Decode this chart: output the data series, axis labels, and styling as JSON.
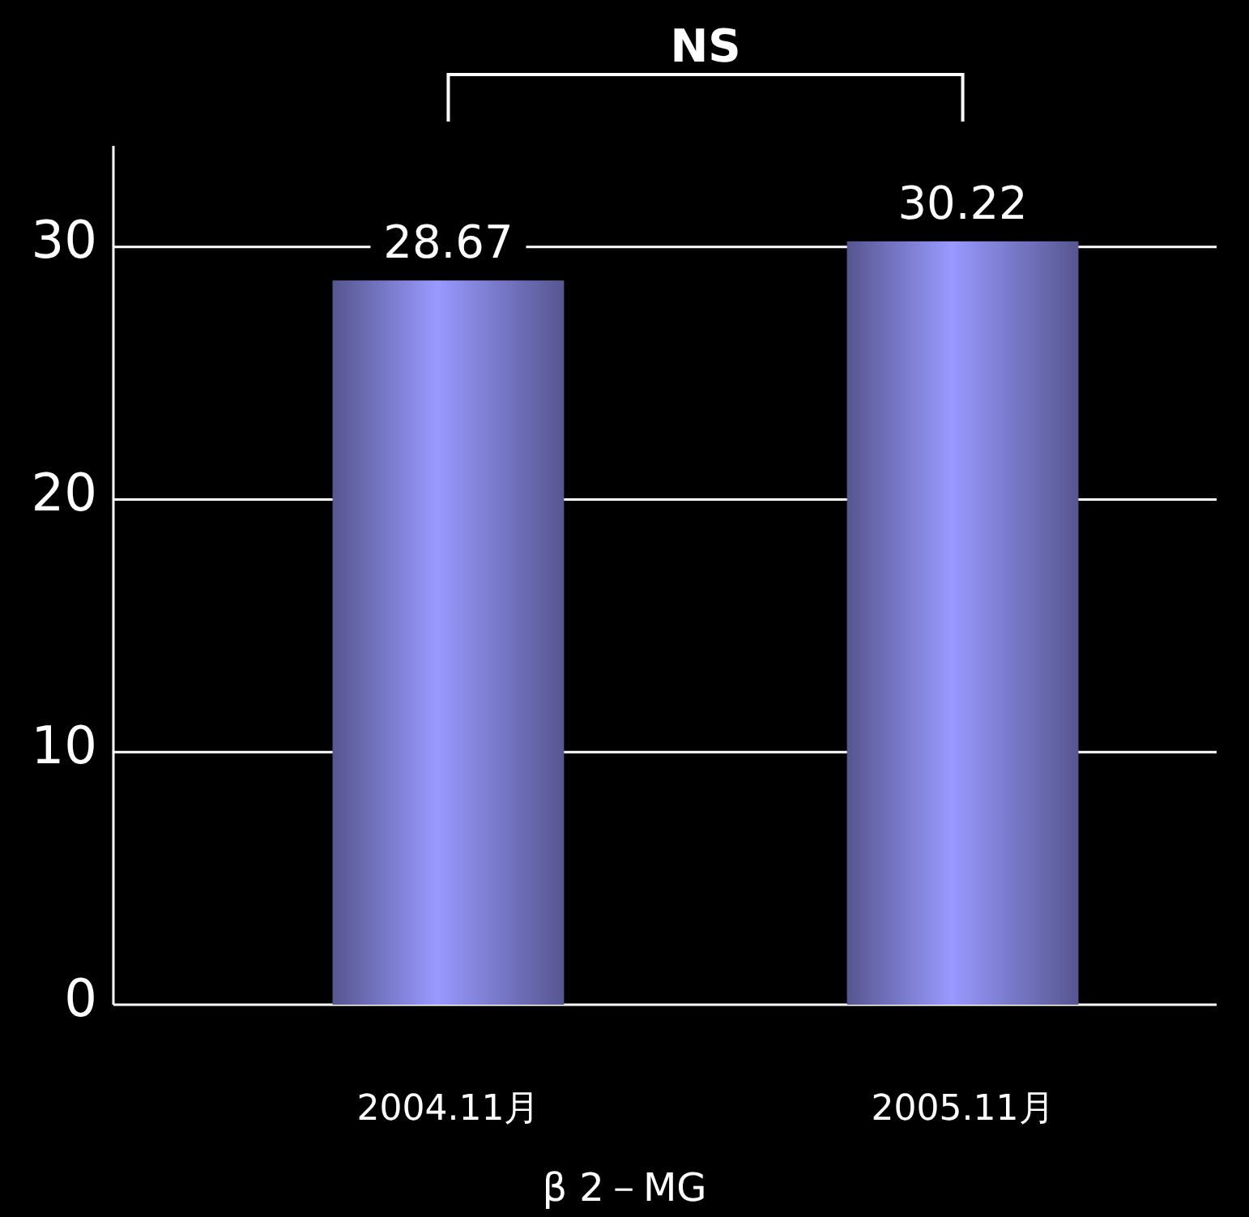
{
  "chart_data": {
    "type": "bar",
    "categories": [
      "2004.11月",
      "2005.11月"
    ],
    "values": [
      28.67,
      30.22
    ],
    "color": "#9999ff",
    "ylim": [
      0,
      34
    ],
    "yticks": [
      0,
      10,
      20,
      30
    ],
    "grid": "y",
    "data_labels": true,
    "xlabel": "β 2－MG",
    "annotations": [
      "NS"
    ]
  }
}
